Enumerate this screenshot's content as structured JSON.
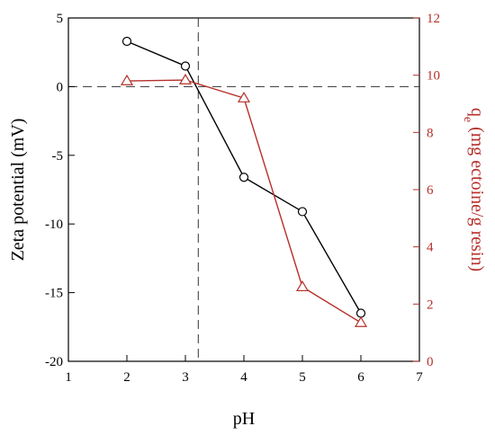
{
  "chart_data": {
    "type": "line",
    "x_axis": {
      "label": "pH",
      "range": [
        1,
        7
      ],
      "ticks": [
        1,
        2,
        3,
        4,
        5,
        6,
        7
      ]
    },
    "y_axis_left": {
      "label": "Zeta potential (mV)",
      "range": [
        -20,
        5
      ],
      "ticks": [
        5,
        0,
        -5,
        -10,
        -15,
        -20
      ],
      "color": "#000000"
    },
    "y_axis_right": {
      "label_main": "q",
      "label_sub": "e",
      "label_rest": " (mg ectoine/g resin)",
      "range": [
        0,
        12
      ],
      "ticks": [
        0,
        2,
        4,
        6,
        8,
        10,
        12
      ],
      "color": "#b5302a"
    },
    "reference_lines": {
      "zeta_zero": 0,
      "pH_point": 3.22
    },
    "series": [
      {
        "axis": "left",
        "marker": "circle",
        "color": "#000000",
        "points": [
          {
            "x": 2,
            "y": 3.3
          },
          {
            "x": 3,
            "y": 1.5
          },
          {
            "x": 4,
            "y": -6.6
          },
          {
            "x": 5,
            "y": -9.1
          },
          {
            "x": 6,
            "y": -16.5
          }
        ]
      },
      {
        "axis": "right",
        "marker": "triangle",
        "color": "#b5302a",
        "points": [
          {
            "x": 2,
            "y": 9.8
          },
          {
            "x": 3,
            "y": 9.83
          },
          {
            "x": 4,
            "y": 9.2
          },
          {
            "x": 5,
            "y": 2.6
          },
          {
            "x": 6,
            "y": 1.35
          }
        ]
      }
    ]
  }
}
